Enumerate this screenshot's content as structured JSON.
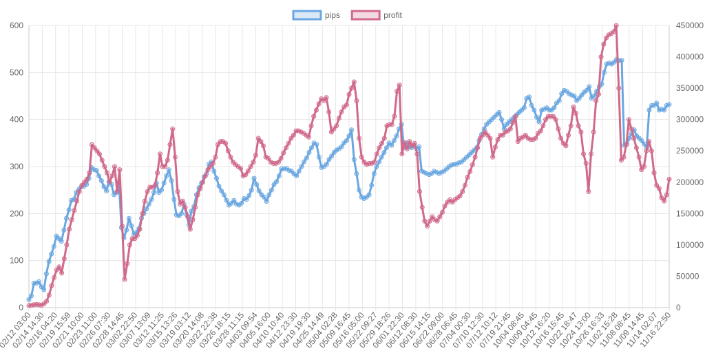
{
  "chart_data": {
    "type": "line",
    "title": "",
    "legend": {
      "position": "top-center",
      "entries": [
        "pips",
        "profit"
      ]
    },
    "grid": true,
    "x_tick_labels": [
      "02/12 03:00",
      "02/14 14:30",
      "02/16 04:20",
      "02/19 15:59",
      "02/21 10:00",
      "02/23 11:00",
      "02/26 07:30",
      "02/28 14:45",
      "03/02 22:50",
      "03/07 13:09",
      "03/12 11:25",
      "03/15 13:26",
      "03/19 03:12",
      "03/20 14:08",
      "03/22 22:38",
      "03/26 18:15",
      "03/28 11:15",
      "04/03 09:54",
      "04/05 16:00",
      "04/10 10:40",
      "04/12 23:30",
      "04/19 19:30",
      "04/25 14:49",
      "05/04 02:28",
      "05/09 16:45",
      "05/16 05:00",
      "05/22 09:27",
      "05/29 18:26",
      "06/01 22:30",
      "06/12 08:30",
      "06/15 14:15",
      "06/22 09:00",
      "06/28 06:45",
      "07/04 00:30",
      "07/10 12:30",
      "07/12 10:12",
      "07/19 21:45",
      "10/04 08:45",
      "10/09 04:45",
      "10/12 16:20",
      "10/16 15:45",
      "10/22 18:47",
      "10/24 13:00",
      "10/26 16:33",
      "11/02 15:28",
      "11/08 08:45",
      "11/09 14:45",
      "11/14 02:07",
      "11/16 22:50"
    ],
    "y_left": {
      "min": 0,
      "max": 600,
      "ticks": [
        0,
        100,
        200,
        300,
        400,
        500,
        600
      ]
    },
    "y_right": {
      "min": 0,
      "max": 450000,
      "ticks": [
        0,
        50000,
        100000,
        150000,
        200000,
        250000,
        300000,
        350000,
        400000,
        450000
      ]
    },
    "series": [
      {
        "name": "pips",
        "axis": "left",
        "color": "#6aa7e1",
        "values": [
          17,
          25,
          52,
          52,
          55,
          44,
          38,
          72,
          98,
          114,
          130,
          152,
          147,
          141,
          165,
          190,
          208,
          228,
          230,
          245,
          252,
          257,
          258,
          262,
          275,
          298,
          293,
          292,
          280,
          270,
          257,
          248,
          268,
          262,
          240,
          244,
          266,
          170,
          148,
          165,
          190,
          174,
          155,
          160,
          168,
          190,
          200,
          210,
          220,
          230,
          245,
          265,
          245,
          250,
          265,
          280,
          293,
          270,
          230,
          197,
          195,
          200,
          220,
          198,
          175,
          205,
          215,
          240,
          255,
          265,
          278,
          285,
          305,
          310,
          290,
          275,
          258,
          248,
          240,
          228,
          218,
          222,
          228,
          220,
          218,
          222,
          232,
          230,
          238,
          250,
          275,
          262,
          248,
          240,
          235,
          226,
          240,
          250,
          262,
          268,
          280,
          295,
          295,
          296,
          292,
          290,
          284,
          280,
          290,
          300,
          310,
          318,
          330,
          340,
          350,
          347,
          320,
          298,
          300,
          305,
          315,
          322,
          330,
          335,
          338,
          342,
          350,
          355,
          365,
          378,
          315,
          285,
          250,
          235,
          232,
          235,
          240,
          260,
          285,
          300,
          310,
          320,
          330,
          340,
          350,
          345,
          355,
          365,
          380,
          390,
          340,
          350,
          342,
          340,
          345,
          338,
          342,
          290,
          288,
          285,
          283,
          285,
          290,
          288,
          285,
          288,
          290,
          295,
          300,
          303,
          305,
          305,
          308,
          310,
          315,
          320,
          325,
          330,
          335,
          340,
          355,
          368,
          380,
          390,
          395,
          400,
          405,
          410,
          415,
          400,
          380,
          390,
          395,
          400,
          405,
          410,
          415,
          420,
          425,
          445,
          448,
          430,
          420,
          405,
          395,
          420,
          422,
          425,
          420,
          420,
          425,
          435,
          440,
          455,
          462,
          460,
          455,
          452,
          450,
          440,
          445,
          452,
          458,
          462,
          470,
          445,
          450,
          460,
          470,
          475,
          500,
          518,
          520,
          518,
          522,
          528,
          525,
          526,
          345,
          348,
          360,
          370,
          378,
          365,
          360,
          355,
          348,
          340,
          420,
          430,
          430,
          435,
          420,
          422,
          420,
          430,
          432
        ]
      },
      {
        "name": "profit",
        "axis": "right",
        "color": "#d0698a",
        "values": [
          3000,
          4000,
          4500,
          5000,
          4500,
          4000,
          6000,
          10000,
          20000,
          35000,
          48000,
          60000,
          65000,
          55000,
          78000,
          100000,
          125000,
          140000,
          155000,
          170000,
          185000,
          195000,
          200000,
          205000,
          215000,
          260000,
          255000,
          250000,
          245000,
          235000,
          225000,
          215000,
          200000,
          210000,
          225000,
          185000,
          220000,
          130000,
          45000,
          70000,
          100000,
          110000,
          110000,
          115000,
          125000,
          150000,
          170000,
          185000,
          192000,
          192000,
          195000,
          215000,
          245000,
          225000,
          225000,
          235000,
          260000,
          285000,
          240000,
          185000,
          165000,
          170000,
          160000,
          145000,
          125000,
          140000,
          160000,
          180000,
          190000,
          200000,
          210000,
          220000,
          225000,
          230000,
          240000,
          260000,
          265000,
          265000,
          262000,
          250000,
          240000,
          232000,
          228000,
          225000,
          222000,
          210000,
          212000,
          218000,
          225000,
          232000,
          243000,
          270000,
          265000,
          258000,
          240000,
          238000,
          232000,
          230000,
          230000,
          232000,
          238000,
          247000,
          255000,
          262000,
          270000,
          275000,
          282000,
          282000,
          280000,
          278000,
          275000,
          272000,
          290000,
          305000,
          315000,
          325000,
          333000,
          330000,
          335000,
          312000,
          280000,
          285000,
          290000,
          302000,
          312000,
          320000,
          323000,
          340000,
          350000,
          360000,
          330000,
          270000,
          240000,
          232000,
          228000,
          230000,
          230000,
          232000,
          245000,
          255000,
          262000,
          270000,
          290000,
          292000,
          292000,
          305000,
          345000,
          355000,
          245000,
          263000,
          253000,
          265000,
          258000,
          262000,
          245000,
          185000,
          160000,
          138000,
          130000,
          138000,
          145000,
          140000,
          138000,
          145000,
          152000,
          162000,
          168000,
          172000,
          168000,
          172000,
          175000,
          178000,
          185000,
          195000,
          208000,
          217000,
          228000,
          240000,
          255000,
          270000,
          275000,
          280000,
          275000,
          270000,
          240000,
          256000,
          268000,
          275000,
          275000,
          280000,
          282000,
          285000,
          295000,
          305000,
          265000,
          270000,
          272000,
          275000,
          270000,
          268000,
          268000,
          270000,
          278000,
          282000,
          290000,
          300000,
          305000,
          305000,
          305000,
          300000,
          285000,
          270000,
          262000,
          258000,
          275000,
          290000,
          320000,
          310000,
          290000,
          280000,
          245000,
          230000,
          185000,
          245000,
          280000,
          330000,
          340000,
          400000,
          420000,
          430000,
          435000,
          437000,
          440000,
          450000,
          350000,
          235000,
          240000,
          260000,
          300000,
          285000,
          270000,
          255000,
          240000,
          220000,
          225000,
          250000,
          265000,
          250000,
          215000,
          195000,
          190000,
          175000,
          170000,
          180000,
          205000
        ]
      }
    ]
  }
}
